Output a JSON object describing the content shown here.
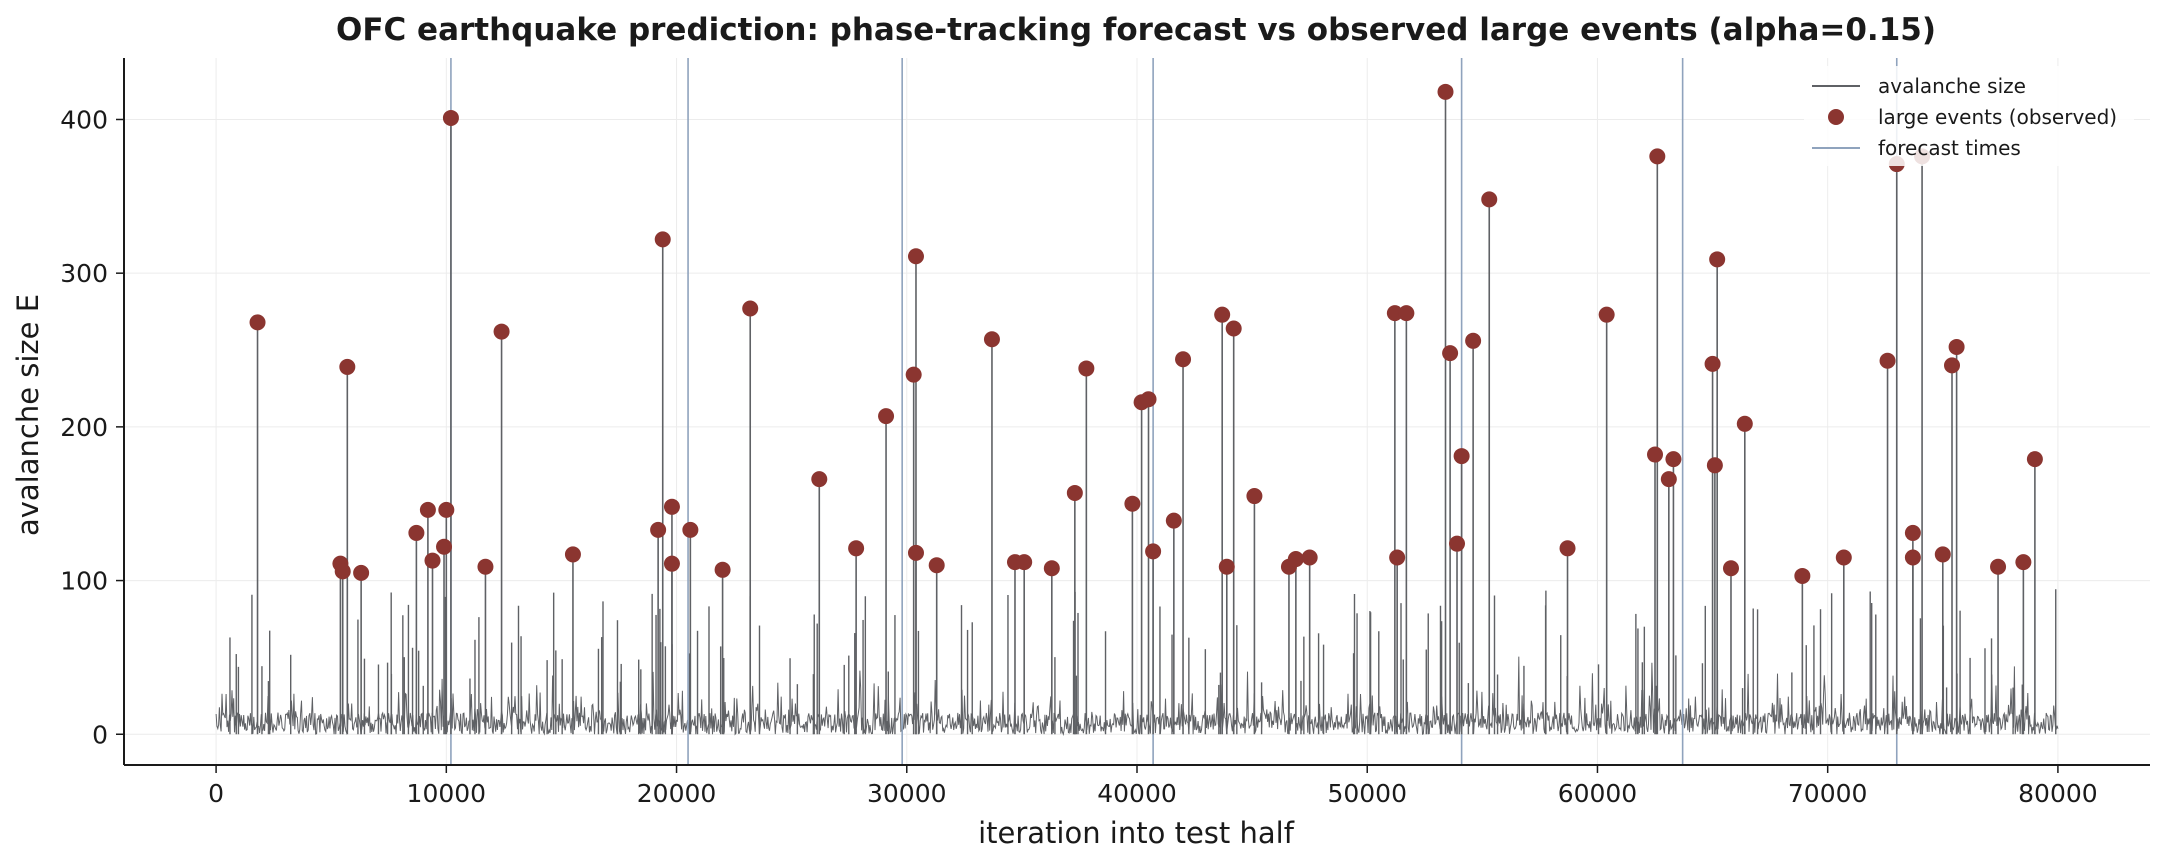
{
  "chart_data": {
    "type": "line",
    "title": "OFC earthquake prediction: phase-tracking forecast vs observed large events (alpha=0.15)",
    "xlabel": "iteration into test half",
    "ylabel": "avalanche size E",
    "xlim": [
      -4000,
      84000
    ],
    "ylim": [
      -20,
      440
    ],
    "xticks": [
      0,
      10000,
      20000,
      30000,
      40000,
      50000,
      60000,
      70000,
      80000
    ],
    "yticks": [
      0,
      100,
      200,
      300,
      400
    ],
    "grid": true,
    "legend_position": "top-right",
    "colors": {
      "avalanche": "#5f6165",
      "events": "#8b3530",
      "forecast": "#8fa3bd",
      "grid": "#ececec",
      "axis": "#1a1a1a"
    },
    "legend": [
      {
        "label": "avalanche size",
        "kind": "line",
        "color": "#5f6165"
      },
      {
        "label": "large events (observed)",
        "kind": "marker",
        "color": "#8b3530"
      },
      {
        "label": "forecast times",
        "kind": "line",
        "color": "#8fa3bd"
      }
    ],
    "series": [
      {
        "name": "large events (observed)",
        "kind": "scatter",
        "points": [
          [
            1800,
            268
          ],
          [
            5400,
            111
          ],
          [
            5500,
            106
          ],
          [
            5700,
            239
          ],
          [
            6300,
            105
          ],
          [
            8700,
            131
          ],
          [
            9200,
            146
          ],
          [
            9400,
            113
          ],
          [
            9900,
            122
          ],
          [
            10000,
            146
          ],
          [
            10200,
            401
          ],
          [
            11700,
            109
          ],
          [
            12400,
            262
          ],
          [
            15500,
            117
          ],
          [
            19200,
            133
          ],
          [
            19400,
            322
          ],
          [
            19800,
            111
          ],
          [
            19800,
            148
          ],
          [
            20600,
            133
          ],
          [
            22000,
            107
          ],
          [
            23200,
            277
          ],
          [
            26200,
            166
          ],
          [
            27800,
            121
          ],
          [
            29100,
            207
          ],
          [
            30300,
            234
          ],
          [
            30400,
            311
          ],
          [
            30400,
            118
          ],
          [
            31300,
            110
          ],
          [
            33700,
            257
          ],
          [
            34700,
            112
          ],
          [
            35100,
            112
          ],
          [
            36300,
            108
          ],
          [
            37300,
            157
          ],
          [
            37800,
            238
          ],
          [
            39800,
            150
          ],
          [
            40200,
            216
          ],
          [
            40500,
            218
          ],
          [
            40700,
            119
          ],
          [
            41600,
            139
          ],
          [
            42000,
            244
          ],
          [
            43700,
            273
          ],
          [
            43900,
            109
          ],
          [
            44200,
            264
          ],
          [
            45100,
            155
          ],
          [
            46600,
            109
          ],
          [
            46900,
            114
          ],
          [
            47500,
            115
          ],
          [
            51200,
            274
          ],
          [
            51300,
            115
          ],
          [
            51700,
            274
          ],
          [
            53400,
            418
          ],
          [
            53600,
            248
          ],
          [
            53900,
            124
          ],
          [
            54100,
            181
          ],
          [
            54600,
            256
          ],
          [
            55300,
            348
          ],
          [
            58700,
            121
          ],
          [
            60400,
            273
          ],
          [
            62500,
            182
          ],
          [
            62600,
            376
          ],
          [
            63100,
            166
          ],
          [
            63300,
            179
          ],
          [
            65000,
            241
          ],
          [
            65100,
            175
          ],
          [
            65200,
            309
          ],
          [
            65800,
            108
          ],
          [
            66400,
            202
          ],
          [
            68900,
            103
          ],
          [
            70700,
            115
          ],
          [
            72600,
            243
          ],
          [
            73000,
            371
          ],
          [
            73700,
            131
          ],
          [
            73700,
            115
          ],
          [
            74100,
            376
          ],
          [
            75000,
            117
          ],
          [
            75400,
            240
          ],
          [
            75600,
            252
          ],
          [
            77400,
            109
          ],
          [
            78500,
            112
          ],
          [
            79000,
            179
          ]
        ]
      },
      {
        "name": "forecast times",
        "kind": "vlines",
        "x": [
          10200,
          20500,
          29800,
          40700,
          54100,
          63700,
          73000
        ]
      }
    ]
  }
}
